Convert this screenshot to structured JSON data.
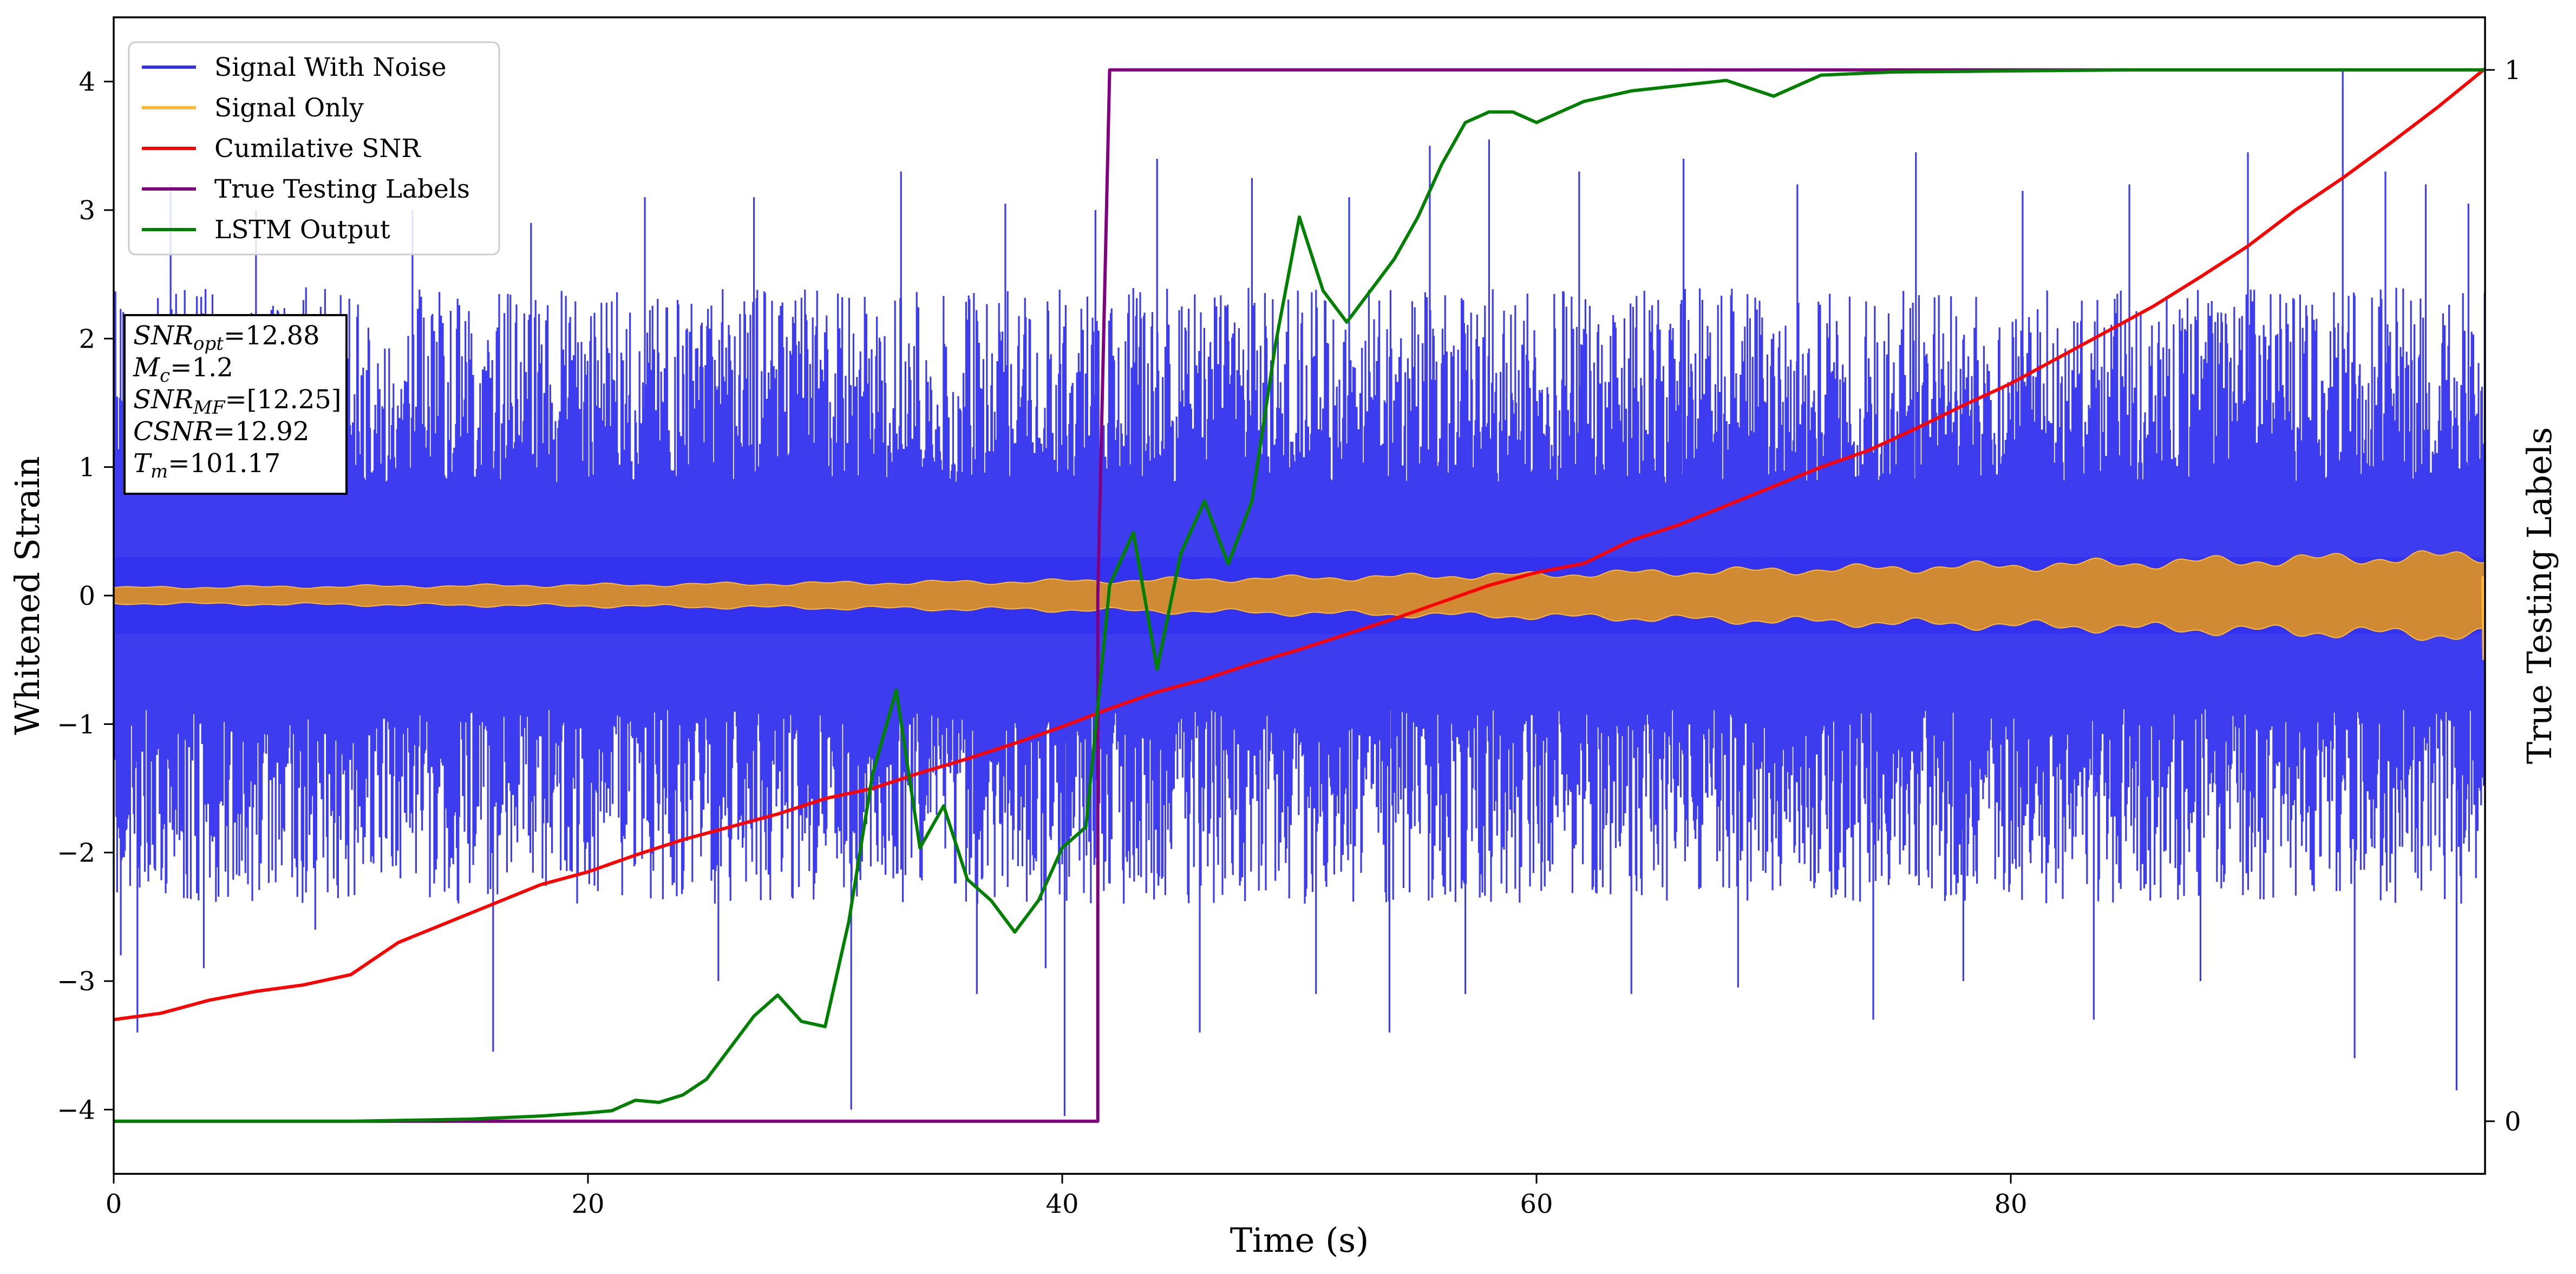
{
  "chart_data": {
    "type": "line",
    "xlabel": "Time (s)",
    "ylabel": "Whitened Strain",
    "ylabel_right": "True Testing Labels",
    "xlim": [
      0,
      100
    ],
    "ylim": [
      -4.5,
      4.5
    ],
    "ylim_right": [
      -0.05,
      1.05
    ],
    "xticks": [
      0,
      20,
      40,
      60,
      80
    ],
    "yticks": [
      -4,
      -3,
      -2,
      -1,
      0,
      1,
      2,
      3,
      4
    ],
    "yticks_right": [
      0,
      1
    ],
    "grid": false,
    "legend_position": "top-left",
    "series": [
      {
        "name": "Signal With Noise",
        "axis": "left",
        "color": "#3333ee",
        "style": "dense-noise",
        "band_envelope": {
          "x": [
            0,
            100
          ],
          "upper": [
            1.6,
            1.6
          ],
          "lower": [
            -1.6,
            -1.6
          ]
        },
        "peaks": [
          [
            0.3,
            -2.8
          ],
          [
            1.0,
            -3.4
          ],
          [
            2.4,
            3.2
          ],
          [
            3.8,
            -2.9
          ],
          [
            6.0,
            3.0
          ],
          [
            8.5,
            -2.6
          ],
          [
            12.6,
            3.0
          ],
          [
            16.0,
            -3.55
          ],
          [
            17.6,
            2.9
          ],
          [
            22.4,
            3.1
          ],
          [
            25.5,
            -3.0
          ],
          [
            27.0,
            3.1
          ],
          [
            31.1,
            -4.0
          ],
          [
            33.2,
            3.3
          ],
          [
            36.4,
            -3.1
          ],
          [
            37.6,
            3.05
          ],
          [
            39.3,
            -2.9
          ],
          [
            40.1,
            -4.05
          ],
          [
            41.4,
            3.0
          ],
          [
            44.0,
            3.4
          ],
          [
            45.8,
            -3.4
          ],
          [
            48.0,
            3.25
          ],
          [
            50.7,
            -3.1
          ],
          [
            52.1,
            3.1
          ],
          [
            53.8,
            -3.4
          ],
          [
            55.5,
            3.5
          ],
          [
            57.0,
            -3.1
          ],
          [
            58.0,
            3.55
          ],
          [
            61.8,
            3.3
          ],
          [
            64.0,
            -3.1
          ],
          [
            66.2,
            3.4
          ],
          [
            68.5,
            -3.05
          ],
          [
            71.0,
            3.2
          ],
          [
            74.2,
            -3.3
          ],
          [
            76.0,
            3.45
          ],
          [
            78.0,
            -3.0
          ],
          [
            80.5,
            3.15
          ],
          [
            83.5,
            -3.3
          ],
          [
            85.0,
            3.2
          ],
          [
            88.0,
            -3.0
          ],
          [
            90.0,
            3.45
          ],
          [
            94.0,
            4.1
          ],
          [
            94.5,
            -3.6
          ],
          [
            95.8,
            3.3
          ],
          [
            97.5,
            3.2
          ],
          [
            98.8,
            -3.85
          ],
          [
            99.3,
            3.05
          ]
        ]
      },
      {
        "name": "Signal Only",
        "axis": "left",
        "color": "#ffb833",
        "style": "oscillating-band",
        "envelope": {
          "x": [
            0,
            20,
            40,
            60,
            80,
            100
          ],
          "amplitude": [
            0.06,
            0.08,
            0.11,
            0.16,
            0.23,
            0.31
          ]
        }
      },
      {
        "name": "Cumilative SNR",
        "axis": "left",
        "color": "#ff0000",
        "x": [
          0,
          2,
          4,
          6,
          8,
          10,
          12,
          14,
          16,
          18,
          20,
          22,
          24,
          26,
          28,
          30,
          32,
          34,
          36,
          38,
          40,
          42,
          44,
          46,
          48,
          50,
          52,
          54,
          56,
          58,
          60,
          62,
          64,
          66,
          68,
          70,
          72,
          74,
          76,
          78,
          80,
          82,
          84,
          86,
          88,
          90,
          92,
          94,
          96,
          98,
          100
        ],
        "y": [
          -3.3,
          -3.25,
          -3.15,
          -3.08,
          -3.03,
          -2.95,
          -2.7,
          -2.55,
          -2.4,
          -2.25,
          -2.15,
          -2.02,
          -1.9,
          -1.8,
          -1.7,
          -1.58,
          -1.5,
          -1.38,
          -1.27,
          -1.15,
          -1.02,
          -0.88,
          -0.75,
          -0.65,
          -0.53,
          -0.42,
          -0.3,
          -0.18,
          -0.05,
          0.08,
          0.18,
          0.25,
          0.43,
          0.55,
          0.7,
          0.85,
          1.0,
          1.13,
          1.3,
          1.48,
          1.65,
          1.85,
          2.05,
          2.25,
          2.48,
          2.72,
          3.0,
          3.25,
          3.52,
          3.8,
          4.1
        ]
      },
      {
        "name": "True Testing Labels",
        "axis": "right",
        "color": "#800080",
        "x": [
          0,
          41.5,
          41.5,
          42.0,
          100
        ],
        "y": [
          0,
          0,
          0.5,
          1,
          1
        ]
      },
      {
        "name": "LSTM Output",
        "axis": "right",
        "color": "#008000",
        "x": [
          0,
          10,
          15,
          18,
          20,
          21,
          22,
          23,
          24,
          25,
          26,
          27,
          28,
          29,
          30,
          31,
          32,
          33,
          34,
          35,
          36,
          37,
          38,
          39,
          40,
          41,
          42,
          43,
          44,
          45,
          46,
          47,
          48,
          49,
          50,
          51,
          52,
          53,
          54,
          55,
          56,
          57,
          58,
          59,
          60,
          62,
          64,
          66,
          68,
          70,
          72,
          75,
          80,
          85,
          90,
          95,
          100
        ],
        "y": [
          0,
          0,
          0.002,
          0.005,
          0.008,
          0.01,
          0.02,
          0.018,
          0.025,
          0.04,
          0.07,
          0.1,
          0.12,
          0.095,
          0.09,
          0.19,
          0.33,
          0.41,
          0.26,
          0.3,
          0.23,
          0.21,
          0.18,
          0.21,
          0.26,
          0.28,
          0.51,
          0.56,
          0.43,
          0.54,
          0.59,
          0.53,
          0.59,
          0.74,
          0.86,
          0.79,
          0.76,
          0.79,
          0.82,
          0.86,
          0.91,
          0.95,
          0.96,
          0.96,
          0.95,
          0.97,
          0.98,
          0.985,
          0.99,
          0.975,
          0.995,
          0.998,
          0.999,
          1.0,
          1.0,
          1.0,
          1.0
        ]
      }
    ],
    "annotation": [
      {
        "label": "SNR",
        "sub": "opt",
        "value": "=12.88"
      },
      {
        "label": "M",
        "sub": "c",
        "value": "=1.2"
      },
      {
        "label": "SNR",
        "sub": "MF",
        "value": "=[12.25]"
      },
      {
        "label": "CSNR",
        "sub": "",
        "value": "=12.92"
      },
      {
        "label": "T",
        "sub": "m",
        "value": "=101.17"
      }
    ]
  }
}
